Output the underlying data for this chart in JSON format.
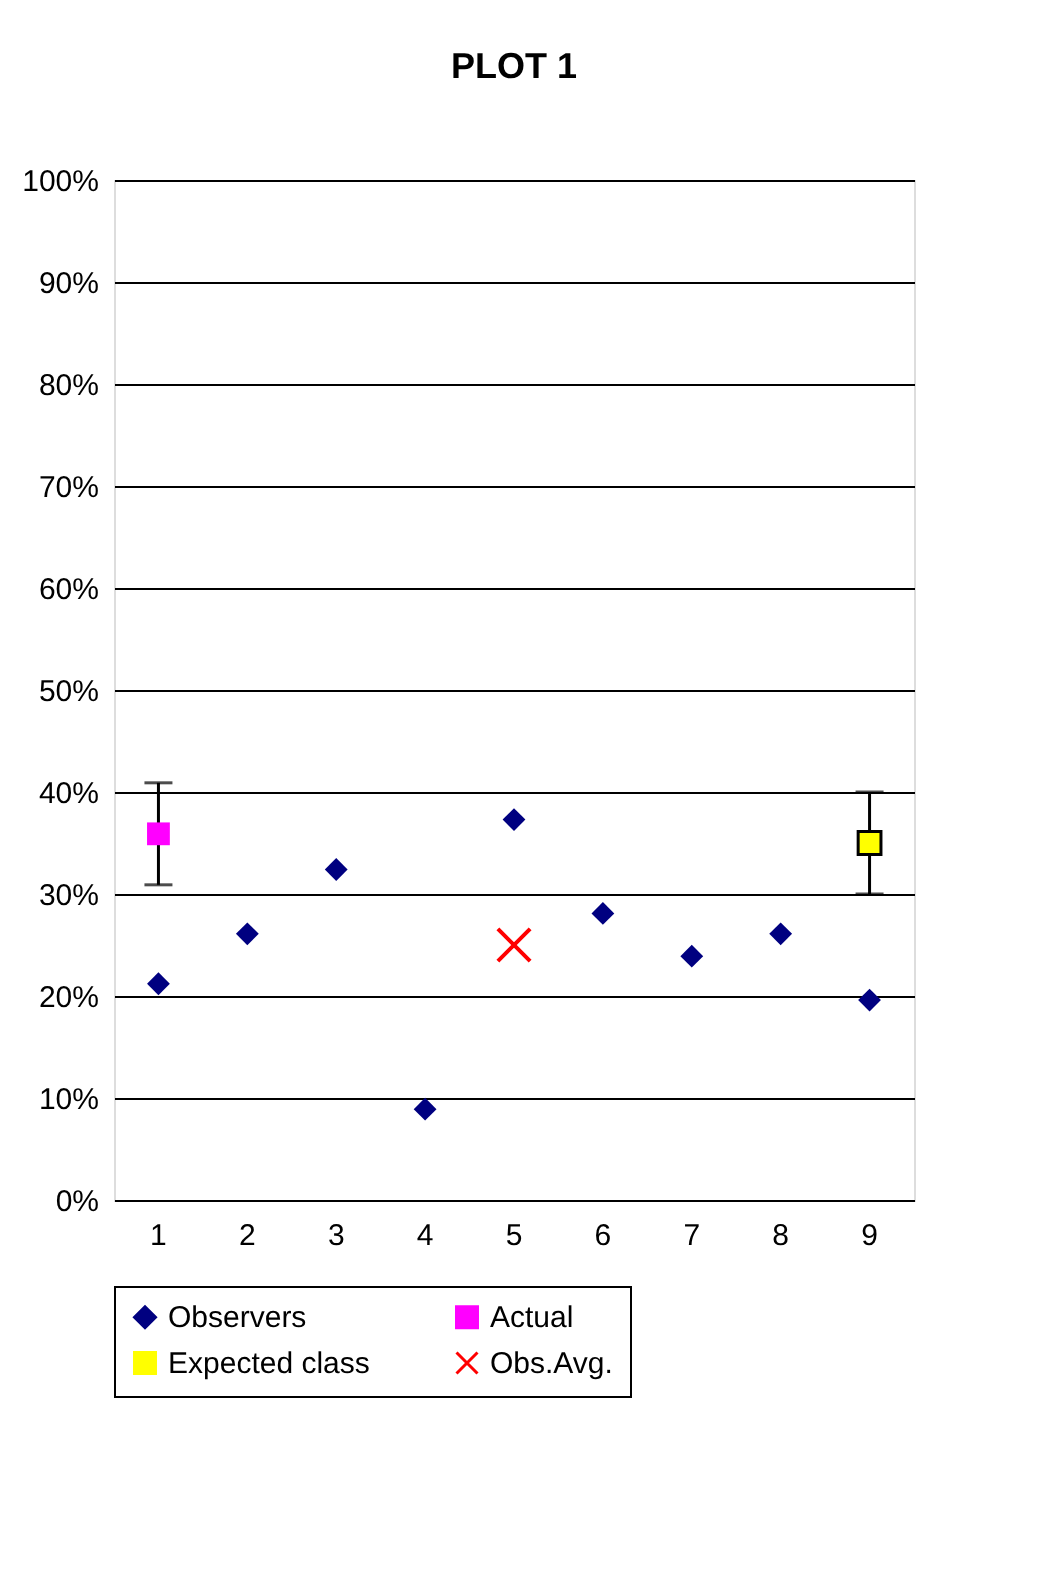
{
  "chart_data": {
    "type": "scatter",
    "title": "PLOT 1",
    "categories": [
      "1",
      "2",
      "3",
      "4",
      "5",
      "6",
      "7",
      "8",
      "9"
    ],
    "series": [
      {
        "name": "Observers",
        "color": "#000080",
        "marker": "diamond",
        "values": [
          21.2,
          26.1,
          32.4,
          8.9,
          37.3,
          28.1,
          23.9,
          26.1,
          19.6
        ]
      },
      {
        "name": "Actual",
        "color": "#ff00ff",
        "marker": "square",
        "x": [
          "1"
        ],
        "values": [
          35.9
        ],
        "errors": [
          5
        ]
      },
      {
        "name": "Expected class",
        "color": "#ffff00",
        "marker": "square",
        "x": [
          "9"
        ],
        "values": [
          35
        ],
        "errors": [
          5
        ]
      },
      {
        "name": "Obs.Avg.",
        "color": "#ff0000",
        "marker": "cross",
        "x": [
          "5"
        ],
        "values": [
          25
        ]
      }
    ],
    "ylim": [
      0,
      100
    ],
    "yticks": [
      {
        "value": 0,
        "label": "0%"
      },
      {
        "value": 10,
        "label": "10%"
      },
      {
        "value": 20,
        "label": "20%"
      },
      {
        "value": 30,
        "label": "30%"
      },
      {
        "value": 40,
        "label": "40%"
      },
      {
        "value": 50,
        "label": "50%"
      },
      {
        "value": 60,
        "label": "60%"
      },
      {
        "value": 70,
        "label": "70%"
      },
      {
        "value": 80,
        "label": "80%"
      },
      {
        "value": 90,
        "label": "90%"
      },
      {
        "value": 100,
        "label": "100%"
      }
    ],
    "grid": "y",
    "legend": "bottom"
  }
}
